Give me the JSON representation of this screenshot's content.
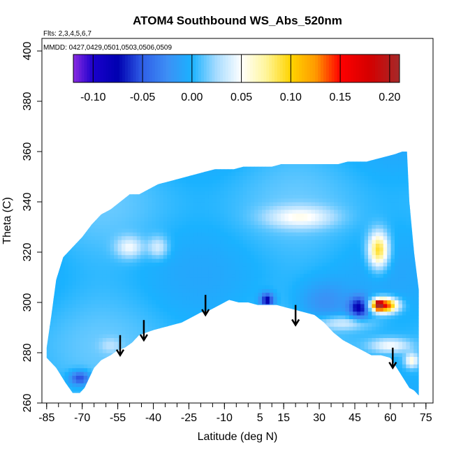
{
  "chart_data": {
    "type": "heatmap",
    "title": "ATOM4 Southbound WS_Abs_520nm",
    "flights_note": "Flts: 2,3,4,5,6,7",
    "dates_note": "MMDD: 0427,0429,0501,0503,0506,0509",
    "xlabel": "Latitude (deg N)",
    "ylabel": "Theta (C)",
    "xlim": [
      -87,
      78
    ],
    "ylim": [
      260,
      405
    ],
    "x_ticks": [
      -85,
      -70,
      -55,
      -40,
      -25,
      -10,
      5,
      15,
      30,
      45,
      60,
      75
    ],
    "x_tick_labels": [
      "-85",
      "-70",
      "-55",
      "-40",
      "-25",
      "-10",
      "5",
      "15",
      "30",
      "45",
      "60",
      "75"
    ],
    "y_ticks": [
      260,
      280,
      300,
      320,
      340,
      360,
      380,
      400
    ],
    "y_tick_labels": [
      "260",
      "280",
      "300",
      "320",
      "340",
      "360",
      "380",
      "400"
    ],
    "colorbar": {
      "range": [
        -0.12,
        0.21
      ],
      "ticks": [
        -0.1,
        -0.05,
        0.0,
        0.05,
        0.1,
        0.15,
        0.2
      ],
      "tick_labels": [
        "-0.10",
        "-0.05",
        "0.00",
        "0.05",
        "0.10",
        "0.15",
        "0.20"
      ],
      "stops": [
        {
          "value": -0.12,
          "color": "#8a2be2"
        },
        {
          "value": -0.1,
          "color": "#1a00cc"
        },
        {
          "value": -0.075,
          "color": "#0000b0"
        },
        {
          "value": -0.05,
          "color": "#2f5fe8"
        },
        {
          "value": -0.025,
          "color": "#3d8ff5"
        },
        {
          "value": 0.0,
          "color": "#1ab2ff"
        },
        {
          "value": 0.025,
          "color": "#a8dcff"
        },
        {
          "value": 0.05,
          "color": "#ffffff"
        },
        {
          "value": 0.075,
          "color": "#fff59a"
        },
        {
          "value": 0.1,
          "color": "#ffd400"
        },
        {
          "value": 0.125,
          "color": "#ff9a00"
        },
        {
          "value": 0.15,
          "color": "#ff0000"
        },
        {
          "value": 0.18,
          "color": "#d40000"
        },
        {
          "value": 0.21,
          "color": "#a52a2a"
        }
      ]
    },
    "domain_top": [
      [
        -85,
        282
      ],
      [
        -83,
        295
      ],
      [
        -81,
        309
      ],
      [
        -78,
        318
      ],
      [
        -74,
        322
      ],
      [
        -70,
        326
      ],
      [
        -66,
        331
      ],
      [
        -62,
        335
      ],
      [
        -58,
        337
      ],
      [
        -54,
        340
      ],
      [
        -50,
        343
      ],
      [
        -46,
        343
      ],
      [
        -42,
        345
      ],
      [
        -38,
        347
      ],
      [
        -34,
        348
      ],
      [
        -30,
        349
      ],
      [
        -26,
        350
      ],
      [
        -22,
        351
      ],
      [
        -18,
        352
      ],
      [
        -14,
        353
      ],
      [
        -10,
        353
      ],
      [
        -6,
        353
      ],
      [
        -2,
        354
      ],
      [
        2,
        354
      ],
      [
        6,
        354
      ],
      [
        10,
        354
      ],
      [
        14,
        355
      ],
      [
        18,
        355
      ],
      [
        22,
        355
      ],
      [
        26,
        355
      ],
      [
        30,
        355
      ],
      [
        34,
        355
      ],
      [
        38,
        355
      ],
      [
        42,
        356
      ],
      [
        46,
        356
      ],
      [
        50,
        356
      ],
      [
        54,
        357
      ],
      [
        58,
        358
      ],
      [
        62,
        359
      ],
      [
        65,
        360
      ],
      [
        67,
        360
      ],
      [
        68,
        340
      ],
      [
        70,
        320
      ],
      [
        72,
        305
      ],
      [
        72,
        288
      ],
      [
        72,
        263
      ]
    ],
    "domain_bottom": [
      [
        -85,
        278
      ],
      [
        -81,
        274
      ],
      [
        -77,
        268
      ],
      [
        -74,
        264
      ],
      [
        -71,
        264
      ],
      [
        -69,
        266
      ],
      [
        -67,
        270
      ],
      [
        -65,
        274
      ],
      [
        -62,
        277
      ],
      [
        -58,
        279
      ],
      [
        -55,
        281
      ],
      [
        -52,
        282
      ],
      [
        -49,
        284
      ],
      [
        -46,
        287
      ],
      [
        -43,
        288
      ],
      [
        -40,
        289
      ],
      [
        -36,
        290
      ],
      [
        -32,
        291
      ],
      [
        -28,
        292
      ],
      [
        -24,
        294
      ],
      [
        -20,
        296
      ],
      [
        -16,
        297
      ],
      [
        -12,
        299
      ],
      [
        -8,
        301
      ],
      [
        -4,
        300
      ],
      [
        0,
        300
      ],
      [
        4,
        299
      ],
      [
        8,
        299
      ],
      [
        12,
        299
      ],
      [
        16,
        298
      ],
      [
        20,
        297
      ],
      [
        24,
        296
      ],
      [
        28,
        295
      ],
      [
        32,
        292
      ],
      [
        36,
        288
      ],
      [
        40,
        285
      ],
      [
        44,
        283
      ],
      [
        48,
        281
      ],
      [
        52,
        279
      ],
      [
        56,
        279
      ],
      [
        60,
        278
      ],
      [
        64,
        272
      ],
      [
        68,
        266
      ],
      [
        70,
        265
      ]
    ],
    "features": [
      {
        "lat": 55,
        "theta": 321,
        "value": 0.1,
        "spread_lat": 3,
        "spread_theta": 5
      },
      {
        "lat": 57,
        "theta": 299,
        "value": 0.17,
        "spread_lat": 4,
        "spread_theta": 2
      },
      {
        "lat": 55,
        "theta": 299,
        "value": 0.2,
        "spread_lat": 1,
        "spread_theta": 1
      },
      {
        "lat": 47,
        "theta": 298,
        "value": -0.08,
        "spread_lat": 3,
        "spread_theta": 3
      },
      {
        "lat": 8,
        "theta": 301,
        "value": -0.08,
        "spread_lat": 2,
        "spread_theta": 2
      },
      {
        "lat": -71,
        "theta": 270,
        "value": -0.06,
        "spread_lat": 3,
        "spread_theta": 2
      },
      {
        "lat": 22,
        "theta": 334,
        "value": 0.045,
        "spread_lat": 10,
        "spread_theta": 3
      },
      {
        "lat": -50,
        "theta": 322,
        "value": 0.045,
        "spread_lat": 4,
        "spread_theta": 3
      },
      {
        "lat": -38,
        "theta": 322,
        "value": 0.04,
        "spread_lat": 3,
        "spread_theta": 3
      },
      {
        "lat": 40,
        "theta": 292,
        "value": 0.04,
        "spread_lat": 8,
        "spread_theta": 2
      },
      {
        "lat": 60,
        "theta": 283,
        "value": 0.05,
        "spread_lat": 6,
        "spread_theta": 2
      },
      {
        "lat": 69,
        "theta": 277,
        "value": 0.06,
        "spread_lat": 2,
        "spread_theta": 2
      },
      {
        "lat": 32,
        "theta": 300,
        "value": -0.025,
        "spread_lat": 8,
        "spread_theta": 6
      },
      {
        "lat": -58,
        "theta": 283,
        "value": 0.02,
        "spread_lat": 3,
        "spread_theta": 2
      }
    ],
    "arrows": [
      {
        "lat": -54,
        "theta_top": 287,
        "theta_tip": 279
      },
      {
        "lat": -44,
        "theta_top": 293,
        "theta_tip": 285
      },
      {
        "lat": -18,
        "theta_top": 303,
        "theta_tip": 295
      },
      {
        "lat": 20,
        "theta_top": 299,
        "theta_tip": 291
      },
      {
        "lat": 61,
        "theta_top": 282,
        "theta_tip": 274
      }
    ]
  }
}
